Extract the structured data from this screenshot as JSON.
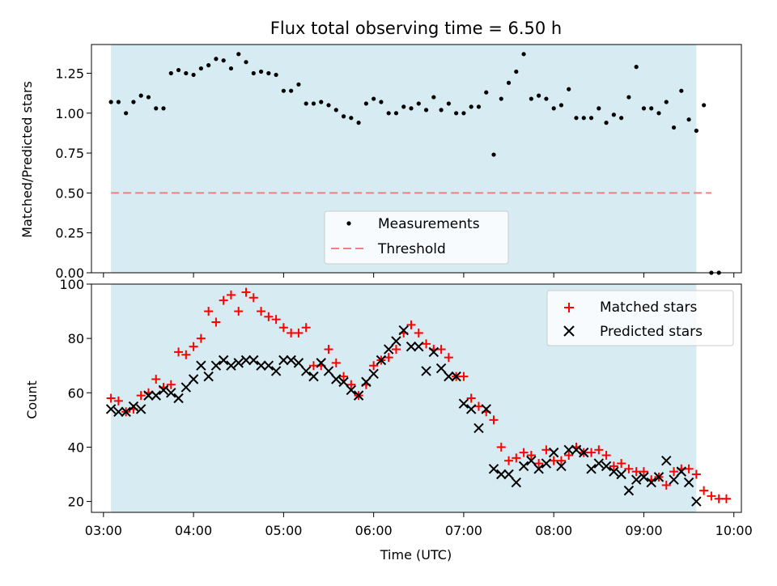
{
  "chart_data": [
    {
      "type": "scatter",
      "title": "Flux total observing time = 6.50 h",
      "xlabel": "",
      "ylabel": "Matched/Predicted stars",
      "ylim": [
        0,
        1.43
      ],
      "xlim": [
        "02:52",
        "10:05"
      ],
      "yticks": [
        "0.00",
        "0.25",
        "0.50",
        "0.75",
        "1.00",
        "1.25"
      ],
      "observing_window": [
        "03:05",
        "09:35"
      ],
      "legend": {
        "placement": "lower-center",
        "entries": [
          {
            "label": "Measurements",
            "marker": "dot",
            "color": "#000000"
          },
          {
            "label": "Threshold",
            "marker": "dashed-line",
            "color": "#f08080"
          }
        ]
      },
      "threshold": {
        "y": 0.5,
        "x_start": "03:05",
        "x_end": "09:45"
      },
      "series": [
        {
          "name": "Measurements",
          "color": "#000000",
          "points": [
            [
              "03:05",
              1.07
            ],
            [
              "03:10",
              1.07
            ],
            [
              "03:15",
              1.0
            ],
            [
              "03:20",
              1.07
            ],
            [
              "03:25",
              1.11
            ],
            [
              "03:30",
              1.1
            ],
            [
              "03:35",
              1.03
            ],
            [
              "03:40",
              1.03
            ],
            [
              "03:45",
              1.25
            ],
            [
              "03:50",
              1.27
            ],
            [
              "03:55",
              1.25
            ],
            [
              "04:00",
              1.24
            ],
            [
              "04:05",
              1.28
            ],
            [
              "04:10",
              1.3
            ],
            [
              "04:15",
              1.34
            ],
            [
              "04:20",
              1.33
            ],
            [
              "04:25",
              1.28
            ],
            [
              "04:30",
              1.37
            ],
            [
              "04:35",
              1.32
            ],
            [
              "04:40",
              1.25
            ],
            [
              "04:45",
              1.26
            ],
            [
              "04:50",
              1.25
            ],
            [
              "04:55",
              1.24
            ],
            [
              "05:00",
              1.14
            ],
            [
              "05:05",
              1.14
            ],
            [
              "05:10",
              1.18
            ],
            [
              "05:15",
              1.06
            ],
            [
              "05:20",
              1.06
            ],
            [
              "05:25",
              1.07
            ],
            [
              "05:30",
              1.05
            ],
            [
              "05:35",
              1.02
            ],
            [
              "05:40",
              0.98
            ],
            [
              "05:45",
              0.97
            ],
            [
              "05:50",
              0.94
            ],
            [
              "05:55",
              1.06
            ],
            [
              "06:00",
              1.09
            ],
            [
              "06:05",
              1.07
            ],
            [
              "06:10",
              1.0
            ],
            [
              "06:15",
              1.0
            ],
            [
              "06:20",
              1.04
            ],
            [
              "06:25",
              1.03
            ],
            [
              "06:30",
              1.06
            ],
            [
              "06:35",
              1.02
            ],
            [
              "06:40",
              1.1
            ],
            [
              "06:45",
              1.02
            ],
            [
              "06:50",
              1.06
            ],
            [
              "06:55",
              1.0
            ],
            [
              "07:00",
              1.0
            ],
            [
              "07:05",
              1.04
            ],
            [
              "07:10",
              1.04
            ],
            [
              "07:15",
              1.13
            ],
            [
              "07:20",
              0.74
            ],
            [
              "07:25",
              1.09
            ],
            [
              "07:30",
              1.19
            ],
            [
              "07:35",
              1.26
            ],
            [
              "07:40",
              1.37
            ],
            [
              "07:45",
              1.09
            ],
            [
              "07:50",
              1.11
            ],
            [
              "07:55",
              1.09
            ],
            [
              "08:00",
              1.03
            ],
            [
              "08:05",
              1.05
            ],
            [
              "08:10",
              1.15
            ],
            [
              "08:15",
              0.97
            ],
            [
              "08:20",
              0.97
            ],
            [
              "08:25",
              0.97
            ],
            [
              "08:30",
              1.03
            ],
            [
              "08:35",
              0.94
            ],
            [
              "08:40",
              0.99
            ],
            [
              "08:45",
              0.97
            ],
            [
              "08:50",
              1.1
            ],
            [
              "08:55",
              1.29
            ],
            [
              "09:00",
              1.03
            ],
            [
              "09:05",
              1.03
            ],
            [
              "09:10",
              1.0
            ],
            [
              "09:15",
              1.07
            ],
            [
              "09:20",
              0.91
            ],
            [
              "09:25",
              1.14
            ],
            [
              "09:30",
              0.96
            ],
            [
              "09:35",
              0.89
            ],
            [
              "09:40",
              1.05
            ],
            [
              "09:45",
              0.0
            ],
            [
              "09:50",
              0.0
            ]
          ]
        }
      ]
    },
    {
      "type": "scatter",
      "title": "",
      "xlabel": "Time (UTC)",
      "ylabel": "Count",
      "ylim": [
        16,
        100
      ],
      "xlim": [
        "02:52",
        "10:05"
      ],
      "yticks": [
        "20",
        "40",
        "60",
        "80",
        "100"
      ],
      "xticks": [
        "03:00",
        "04:00",
        "05:00",
        "06:00",
        "07:00",
        "08:00",
        "09:00",
        "10:00"
      ],
      "observing_window": [
        "03:05",
        "09:35"
      ],
      "legend": {
        "placement": "top-right",
        "entries": [
          {
            "label": "Matched stars",
            "marker": "plus",
            "color": "#ff0000"
          },
          {
            "label": "Predicted stars",
            "marker": "x",
            "color": "#000000"
          }
        ]
      },
      "series": [
        {
          "name": "Matched stars",
          "color": "#ff0000",
          "points": [
            [
              "03:05",
              58
            ],
            [
              "03:10",
              57
            ],
            [
              "03:15",
              53
            ],
            [
              "03:20",
              54
            ],
            [
              "03:25",
              59
            ],
            [
              "03:30",
              60
            ],
            [
              "03:35",
              65
            ],
            [
              "03:40",
              62
            ],
            [
              "03:45",
              63
            ],
            [
              "03:50",
              75
            ],
            [
              "03:55",
              74
            ],
            [
              "04:00",
              77
            ],
            [
              "04:05",
              80
            ],
            [
              "04:10",
              90
            ],
            [
              "04:15",
              86
            ],
            [
              "04:20",
              94
            ],
            [
              "04:25",
              96
            ],
            [
              "04:30",
              90
            ],
            [
              "04:35",
              97
            ],
            [
              "04:40",
              95
            ],
            [
              "04:45",
              90
            ],
            [
              "04:50",
              88
            ],
            [
              "04:55",
              87
            ],
            [
              "05:00",
              84
            ],
            [
              "05:05",
              82
            ],
            [
              "05:10",
              82
            ],
            [
              "05:15",
              84
            ],
            [
              "05:20",
              70
            ],
            [
              "05:25",
              70
            ],
            [
              "05:30",
              76
            ],
            [
              "05:35",
              71
            ],
            [
              "05:40",
              66
            ],
            [
              "05:45",
              63
            ],
            [
              "05:50",
              59
            ],
            [
              "05:55",
              63
            ],
            [
              "06:00",
              70
            ],
            [
              "06:05",
              72
            ],
            [
              "06:10",
              73
            ],
            [
              "06:15",
              76
            ],
            [
              "06:20",
              82
            ],
            [
              "06:25",
              85
            ],
            [
              "06:30",
              82
            ],
            [
              "06:35",
              78
            ],
            [
              "06:40",
              76
            ],
            [
              "06:45",
              76
            ],
            [
              "06:50",
              73
            ],
            [
              "06:55",
              66
            ],
            [
              "07:00",
              66
            ],
            [
              "07:05",
              58
            ],
            [
              "07:10",
              55
            ],
            [
              "07:15",
              53
            ],
            [
              "07:20",
              50
            ],
            [
              "07:25",
              40
            ],
            [
              "07:30",
              35
            ],
            [
              "07:35",
              36
            ],
            [
              "07:40",
              38
            ],
            [
              "07:45",
              37
            ],
            [
              "07:50",
              34
            ],
            [
              "07:55",
              39
            ],
            [
              "08:00",
              35
            ],
            [
              "08:05",
              35
            ],
            [
              "08:10",
              37
            ],
            [
              "08:15",
              40
            ],
            [
              "08:20",
              38
            ],
            [
              "08:25",
              38
            ],
            [
              "08:30",
              39
            ],
            [
              "08:35",
              37
            ],
            [
              "08:40",
              33
            ],
            [
              "08:45",
              34
            ],
            [
              "08:50",
              32
            ],
            [
              "08:55",
              31
            ],
            [
              "09:00",
              31
            ],
            [
              "09:05",
              28
            ],
            [
              "09:10",
              29
            ],
            [
              "09:15",
              26
            ],
            [
              "09:20",
              31
            ],
            [
              "09:25",
              32
            ],
            [
              "09:30",
              32
            ],
            [
              "09:35",
              30
            ],
            [
              "09:40",
              24
            ],
            [
              "09:45",
              22
            ],
            [
              "09:50",
              21
            ],
            [
              "09:55",
              21
            ]
          ]
        },
        {
          "name": "Predicted stars",
          "color": "#000000",
          "points": [
            [
              "03:05",
              54
            ],
            [
              "03:10",
              53
            ],
            [
              "03:15",
              53
            ],
            [
              "03:20",
              55
            ],
            [
              "03:25",
              54
            ],
            [
              "03:30",
              59
            ],
            [
              "03:35",
              59
            ],
            [
              "03:40",
              61
            ],
            [
              "03:45",
              60
            ],
            [
              "03:50",
              58
            ],
            [
              "03:55",
              62
            ],
            [
              "04:00",
              65
            ],
            [
              "04:05",
              70
            ],
            [
              "04:10",
              66
            ],
            [
              "04:15",
              70
            ],
            [
              "04:20",
              72
            ],
            [
              "04:25",
              70
            ],
            [
              "04:30",
              71
            ],
            [
              "04:35",
              72
            ],
            [
              "04:40",
              72
            ],
            [
              "04:45",
              70
            ],
            [
              "04:50",
              70
            ],
            [
              "04:55",
              68
            ],
            [
              "05:00",
              72
            ],
            [
              "05:05",
              72
            ],
            [
              "05:10",
              71
            ],
            [
              "05:15",
              68
            ],
            [
              "05:20",
              66
            ],
            [
              "05:25",
              71
            ],
            [
              "05:30",
              68
            ],
            [
              "05:35",
              65
            ],
            [
              "05:40",
              64
            ],
            [
              "05:45",
              61
            ],
            [
              "05:50",
              59
            ],
            [
              "05:55",
              64
            ],
            [
              "06:00",
              67
            ],
            [
              "06:05",
              72
            ],
            [
              "06:10",
              76
            ],
            [
              "06:15",
              79
            ],
            [
              "06:20",
              83
            ],
            [
              "06:25",
              77
            ],
            [
              "06:30",
              77
            ],
            [
              "06:35",
              68
            ],
            [
              "06:40",
              75
            ],
            [
              "06:45",
              69
            ],
            [
              "06:50",
              66
            ],
            [
              "06:55",
              66
            ],
            [
              "07:00",
              56
            ],
            [
              "07:05",
              54
            ],
            [
              "07:10",
              47
            ],
            [
              "07:15",
              54
            ],
            [
              "07:20",
              32
            ],
            [
              "07:25",
              30
            ],
            [
              "07:30",
              30
            ],
            [
              "07:35",
              27
            ],
            [
              "07:40",
              33
            ],
            [
              "07:45",
              35
            ],
            [
              "07:50",
              32
            ],
            [
              "07:55",
              34
            ],
            [
              "08:00",
              38
            ],
            [
              "08:05",
              33
            ],
            [
              "08:10",
              39
            ],
            [
              "08:15",
              39
            ],
            [
              "08:20",
              38
            ],
            [
              "08:25",
              32
            ],
            [
              "08:30",
              34
            ],
            [
              "08:35",
              33
            ],
            [
              "08:40",
              31
            ],
            [
              "08:45",
              30
            ],
            [
              "08:50",
              24
            ],
            [
              "08:55",
              28
            ],
            [
              "09:00",
              29
            ],
            [
              "09:05",
              27
            ],
            [
              "09:10",
              29
            ],
            [
              "09:15",
              35
            ],
            [
              "09:20",
              28
            ],
            [
              "09:25",
              31
            ],
            [
              "09:30",
              27
            ],
            [
              "09:35",
              20
            ]
          ]
        }
      ]
    }
  ]
}
